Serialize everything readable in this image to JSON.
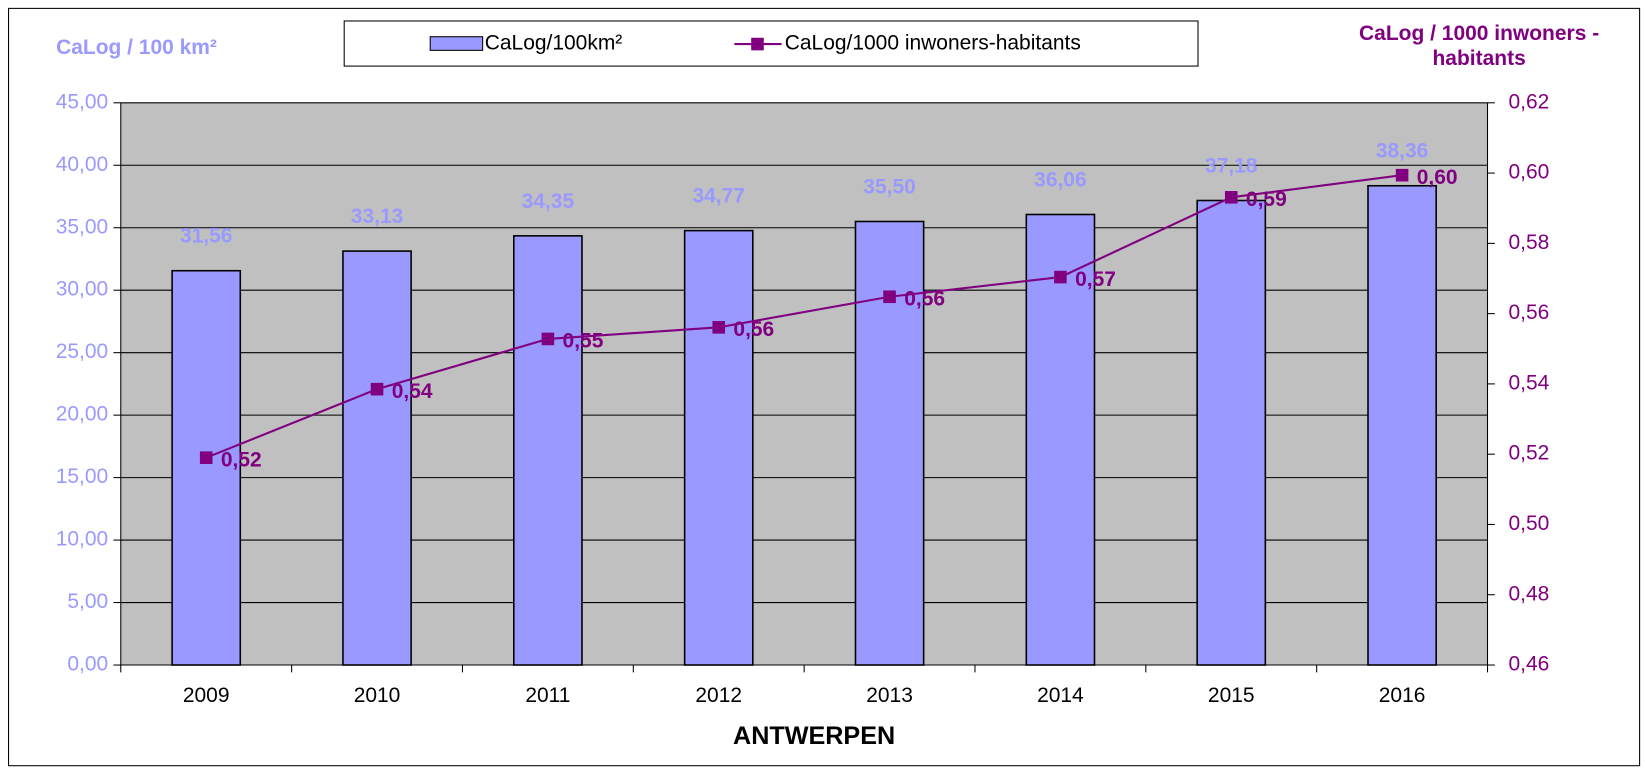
{
  "chart_data": {
    "type": "bar_line",
    "x_label": "ANTWERPEN",
    "y_label": "CaLog / 100 km²",
    "y2_label": "CaLog / 1000 inwoners - habitants",
    "categories": [
      "2009",
      "2010",
      "2011",
      "2012",
      "2013",
      "2014",
      "2015",
      "2016"
    ],
    "series": [
      {
        "name": "CaLog/100km²",
        "type": "bar",
        "color": "#9999ff",
        "values": [
          31.56,
          33.13,
          34.35,
          34.77,
          35.5,
          36.06,
          37.18,
          38.36
        ],
        "value_labels": [
          "31,56",
          "33,13",
          "34,35",
          "34,77",
          "35,50",
          "36,06",
          "37,18",
          "38,36"
        ]
      },
      {
        "name": "CaLog/1000 inwoners-habitants",
        "type": "line",
        "axis": "y2",
        "color": "#800080",
        "values": [
          0.519,
          0.5385,
          0.5528,
          0.5561,
          0.5648,
          0.5704,
          0.5931,
          0.5994
        ],
        "value_labels": [
          "0,52",
          "0,54",
          "0,55",
          "0,56",
          "0,56",
          "0,57",
          "0,59",
          "0,60"
        ]
      }
    ],
    "ylim": [
      0,
      45
    ],
    "yticks": [
      {
        "value": 0,
        "label": "0,00"
      },
      {
        "value": 5,
        "label": "5,00"
      },
      {
        "value": 10,
        "label": "10,00"
      },
      {
        "value": 15,
        "label": "15,00"
      },
      {
        "value": 20,
        "label": "20,00"
      },
      {
        "value": 25,
        "label": "25,00"
      },
      {
        "value": 30,
        "label": "30,00"
      },
      {
        "value": 35,
        "label": "35,00"
      },
      {
        "value": 40,
        "label": "40,00"
      },
      {
        "value": 45,
        "label": "45,00"
      }
    ],
    "y2lim": [
      0.46,
      0.62
    ],
    "y2ticks": [
      {
        "value": 0.46,
        "label": "0,46"
      },
      {
        "value": 0.48,
        "label": "0,48"
      },
      {
        "value": 0.5,
        "label": "0,50"
      },
      {
        "value": 0.52,
        "label": "0,52"
      },
      {
        "value": 0.54,
        "label": "0,54"
      },
      {
        "value": 0.56,
        "label": "0,56"
      },
      {
        "value": 0.58,
        "label": "0,58"
      },
      {
        "value": 0.6,
        "label": "0,60"
      },
      {
        "value": 0.62,
        "label": "0,62"
      }
    ],
    "grid": true,
    "legend": "top"
  }
}
